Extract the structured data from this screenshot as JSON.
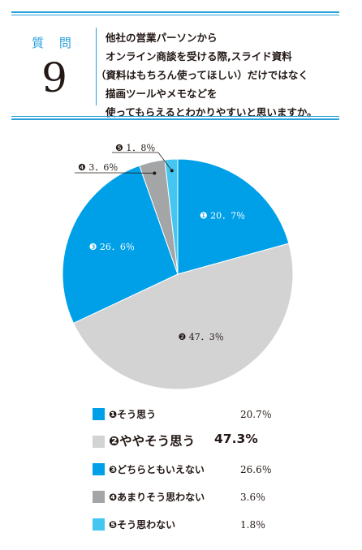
{
  "question": {
    "label": "質 問",
    "number": "9",
    "lines": [
      "他社の営業パーソンから",
      "オンライン商談を受ける際,スライド資料",
      "（資料はもちろん使ってほしい）だけではなく",
      "描画ツールやメモなどを",
      "使ってもらえるとわかりやすいと思いますか。"
    ]
  },
  "colors": {
    "accent": "#29a0da",
    "slice_1": "#00a0e9",
    "slice_2": "#d3d3d4",
    "slice_3": "#00a0e9",
    "slice_4": "#a4a5a7",
    "slice_5": "#45c6f0",
    "text": "#231815"
  },
  "chart_data": {
    "type": "pie",
    "title": "",
    "slices": [
      {
        "marker": "❶",
        "label": "そう思う",
        "value": 20.7,
        "value_text": "20.7％",
        "pie_label": "20．7％",
        "color": "#00a0e9",
        "label_color": "#ffffff"
      },
      {
        "marker": "❷",
        "label": "ややそう思う",
        "value": 47.3,
        "value_text": "47.3%",
        "pie_label": "47．3％",
        "color": "#d3d3d4",
        "label_color": "#231815"
      },
      {
        "marker": "❸",
        "label": "どちらともいえない",
        "value": 26.6,
        "value_text": "26.6％",
        "pie_label": "26．6％",
        "color": "#00a0e9",
        "label_color": "#ffffff"
      },
      {
        "marker": "❹",
        "label": "あまりそう思わない",
        "value": 3.6,
        "value_text": "3.6％",
        "pie_label": "3．6％",
        "color": "#a4a5a7",
        "label_color": "#231815"
      },
      {
        "marker": "❺",
        "label": "そう思わない",
        "value": 1.8,
        "value_text": "1.8％",
        "pie_label": "1．8％",
        "color": "#45c6f0",
        "label_color": "#231815"
      }
    ],
    "legend_placement": "bottom",
    "highlighted_slice": 2
  }
}
